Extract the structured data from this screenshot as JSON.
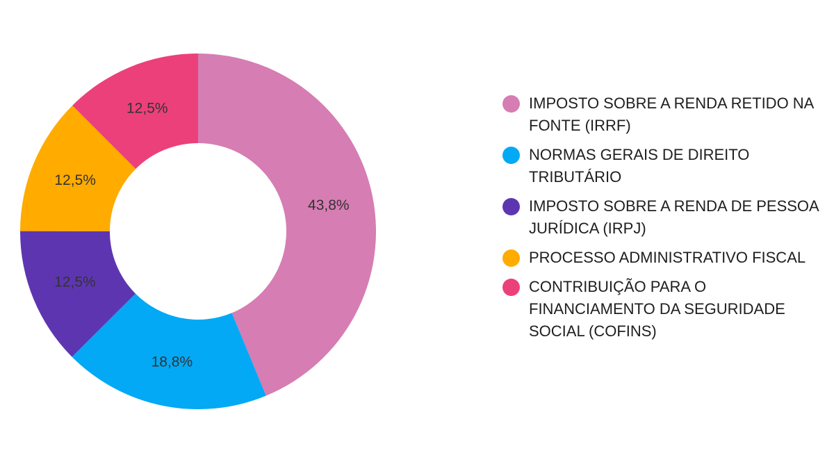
{
  "chart_data": {
    "type": "pie",
    "donut": true,
    "slices": [
      {
        "label": "IMPOSTO SOBRE A RENDA RETIDO NA FONTE (IRRF)",
        "value": 43.8,
        "display": "43,8%",
        "color": "#d67db3"
      },
      {
        "label": "NORMAS GERAIS DE DIREITO TRIBUTÁRIO",
        "value": 18.8,
        "display": "18,8%",
        "color": "#03a9f4"
      },
      {
        "label": "IMPOSTO SOBRE A RENDA DE PESSOA JURÍDICA (IRPJ)",
        "value": 12.5,
        "display": "12,5%",
        "color": "#5e35b1"
      },
      {
        "label": "PROCESSO ADMINISTRATIVO FISCAL",
        "value": 12.5,
        "display": "12,5%",
        "color": "#ffab00"
      },
      {
        "label": "CONTRIBUIÇÃO PARA O FINANCIAMENTO DA SEGURIDADE SOCIAL (COFINS)",
        "value": 12.5,
        "display": "12,5%",
        "color": "#ec407a"
      }
    ],
    "legend_position": "right"
  }
}
